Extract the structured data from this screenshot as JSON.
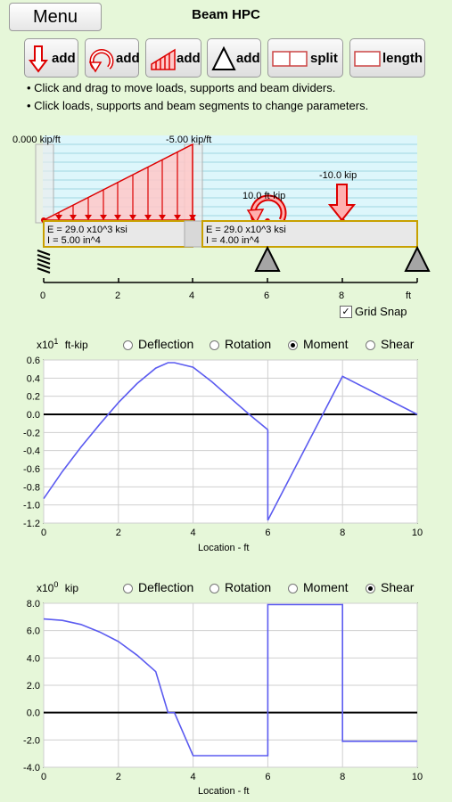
{
  "header": {
    "menu_label": "Menu",
    "title": "Beam HPC"
  },
  "toolbar": {
    "point_load": "add",
    "moment_load": "add",
    "distributed_load": "add",
    "support": "add",
    "split": "split",
    "length": "length"
  },
  "instructions": [
    "• Click and drag to move loads, supports and beam dividers.",
    "• Click loads, supports and beam segments to change parameters."
  ],
  "beam": {
    "dist_load_start": "0.000 kip/ft",
    "dist_load_end": "-5.00 kip/ft",
    "moment_load": "10.0 ft-kip",
    "point_load": "-10.0 kip",
    "segment1_E": "E = 29.0 x10^3 ksi",
    "segment1_I": "I = 5.00 in^4",
    "segment2_E": "E = 29.0 x10^3 ksi",
    "segment2_I": "I = 4.00 in^4",
    "axis_ticks": [
      "0",
      "2",
      "4",
      "6",
      "8"
    ],
    "axis_unit": "ft",
    "grid_snap_label": "Grid Snap",
    "grid_snap_checked": "✓"
  },
  "moment_plot": {
    "exponent_base": "x10",
    "exponent_power": "1",
    "unit": "ft-kip",
    "options": [
      "Deflection",
      "Rotation",
      "Moment",
      "Shear"
    ],
    "selected": "Moment",
    "y_ticks": [
      "0.6",
      "0.4",
      "0.2",
      "0.0",
      "-0.2",
      "-0.4",
      "-0.6",
      "-0.8",
      "-1.0",
      "-1.2"
    ],
    "x_ticks": [
      "0",
      "2",
      "4",
      "6",
      "8",
      "10"
    ],
    "xlabel": "Location - ft"
  },
  "shear_plot": {
    "exponent_base": "x10",
    "exponent_power": "0",
    "unit": "kip",
    "options": [
      "Deflection",
      "Rotation",
      "Moment",
      "Shear"
    ],
    "selected": "Shear",
    "y_ticks": [
      "8.0",
      "6.0",
      "4.0",
      "2.0",
      "0.0",
      "-2.0",
      "-4.0"
    ],
    "x_ticks": [
      "0",
      "2",
      "4",
      "6",
      "8",
      "10"
    ],
    "xlabel": "Location - ft"
  },
  "chart_data": [
    {
      "type": "line",
      "xlabel": "Location - ft",
      "ylabel": "x10^1 ft-kip",
      "xlim": [
        0,
        10
      ],
      "ylim": [
        -1.2,
        0.6
      ],
      "series": [
        {
          "x": [
            0,
            0.5,
            1,
            1.5,
            2,
            2.5,
            3,
            3.33,
            3.5,
            4,
            4.5,
            5,
            5.5,
            6
          ],
          "y": [
            -0.93,
            -0.63,
            -0.36,
            -0.11,
            0.13,
            0.34,
            0.51,
            0.57,
            0.57,
            0.52,
            0.36,
            0.18,
            0.0,
            -0.17
          ]
        },
        {
          "x": [
            6,
            6,
            8,
            10
          ],
          "y": [
            -0.17,
            -1.17,
            0.42,
            0.0
          ]
        }
      ],
      "grid": true
    },
    {
      "type": "line",
      "xlabel": "Location - ft",
      "ylabel": "x10^0 kip",
      "xlim": [
        0,
        10
      ],
      "ylim": [
        -4.0,
        8.0
      ],
      "series": [
        {
          "x": [
            0,
            0.5,
            1,
            1.5,
            2,
            2.5,
            3,
            3.33,
            3.5,
            4,
            4.5,
            5,
            5.5,
            6,
            6,
            8,
            8,
            10
          ],
          "y": [
            6.85,
            6.75,
            6.45,
            5.9,
            5.2,
            4.2,
            3.0,
            0.0,
            0.0,
            -3.15,
            -3.15,
            -3.15,
            -3.15,
            -3.15,
            7.9,
            7.9,
            -2.1,
            -2.1
          ]
        }
      ],
      "grid": true
    }
  ]
}
